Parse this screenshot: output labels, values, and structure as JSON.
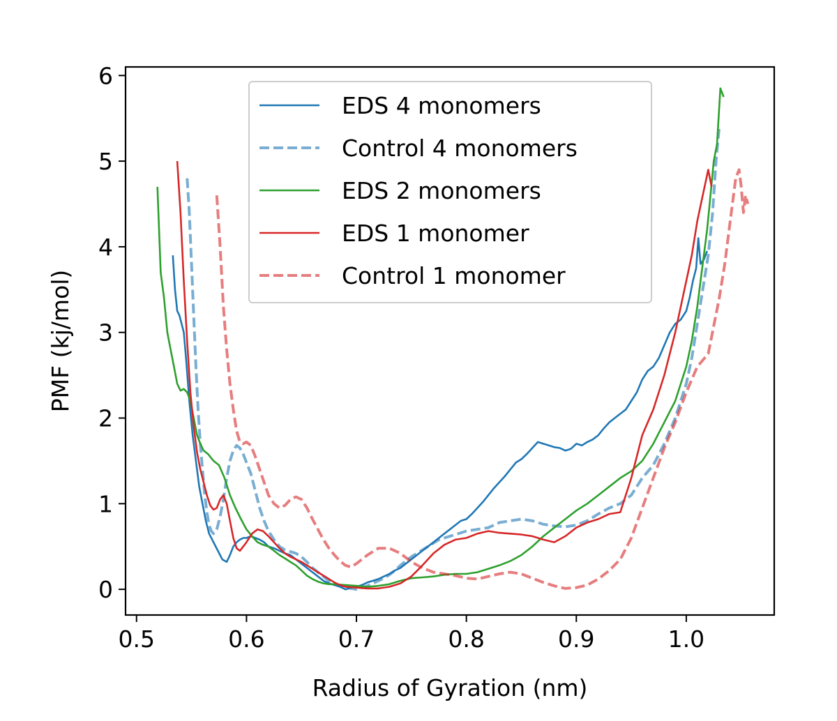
{
  "chart_data": {
    "type": "line",
    "title": "",
    "xlabel": "Radius of Gyration (nm)",
    "ylabel": "PMF (kj/mol)",
    "xlim": [
      0.49,
      1.08
    ],
    "ylim": [
      -0.3,
      6.1
    ],
    "xticks": [
      0.5,
      0.6,
      0.7,
      0.8,
      0.9,
      1.0
    ],
    "xtick_labels": [
      "0.5",
      "0.6",
      "0.7",
      "0.8",
      "0.9",
      "1.0"
    ],
    "yticks": [
      0,
      1,
      2,
      3,
      4,
      5,
      6
    ],
    "ytick_labels": [
      "0",
      "1",
      "2",
      "3",
      "4",
      "5",
      "6"
    ],
    "grid": false,
    "legend_position": "top-center",
    "series": [
      {
        "name": "EDS 4 monomers",
        "color": "#1f77b4",
        "style": "solid",
        "opacity": 1,
        "x": [
          0.533,
          0.535,
          0.537,
          0.539,
          0.541,
          0.543,
          0.545,
          0.548,
          0.551,
          0.554,
          0.557,
          0.56,
          0.563,
          0.566,
          0.57,
          0.574,
          0.578,
          0.582,
          0.585,
          0.588,
          0.591,
          0.594,
          0.597,
          0.6,
          0.604,
          0.608,
          0.612,
          0.616,
          0.62,
          0.625,
          0.63,
          0.635,
          0.64,
          0.645,
          0.65,
          0.655,
          0.66,
          0.665,
          0.67,
          0.675,
          0.68,
          0.685,
          0.69,
          0.695,
          0.7,
          0.705,
          0.71,
          0.715,
          0.72,
          0.725,
          0.73,
          0.735,
          0.74,
          0.745,
          0.75,
          0.755,
          0.76,
          0.765,
          0.77,
          0.775,
          0.78,
          0.785,
          0.79,
          0.795,
          0.8,
          0.805,
          0.81,
          0.815,
          0.82,
          0.825,
          0.83,
          0.835,
          0.84,
          0.845,
          0.85,
          0.855,
          0.86,
          0.865,
          0.87,
          0.875,
          0.88,
          0.885,
          0.89,
          0.895,
          0.9,
          0.905,
          0.91,
          0.915,
          0.92,
          0.925,
          0.93,
          0.935,
          0.94,
          0.945,
          0.95,
          0.955,
          0.96,
          0.965,
          0.97,
          0.975,
          0.98,
          0.985,
          0.99,
          0.995,
          1.0,
          1.003,
          1.006,
          1.009,
          1.011,
          1.013,
          1.016,
          1.019
        ],
        "y": [
          3.9,
          3.5,
          3.25,
          3.2,
          3.1,
          3.0,
          2.7,
          2.2,
          1.8,
          1.5,
          1.2,
          1.0,
          0.8,
          0.65,
          0.55,
          0.45,
          0.35,
          0.32,
          0.4,
          0.5,
          0.55,
          0.58,
          0.6,
          0.6,
          0.62,
          0.6,
          0.58,
          0.55,
          0.5,
          0.48,
          0.45,
          0.42,
          0.4,
          0.35,
          0.3,
          0.25,
          0.2,
          0.15,
          0.1,
          0.07,
          0.05,
          0.03,
          0.0,
          0.02,
          0.03,
          0.05,
          0.08,
          0.1,
          0.12,
          0.15,
          0.18,
          0.22,
          0.25,
          0.3,
          0.35,
          0.4,
          0.45,
          0.5,
          0.55,
          0.6,
          0.65,
          0.7,
          0.75,
          0.8,
          0.82,
          0.88,
          0.95,
          1.02,
          1.1,
          1.18,
          1.25,
          1.32,
          1.4,
          1.48,
          1.52,
          1.58,
          1.65,
          1.72,
          1.7,
          1.68,
          1.66,
          1.65,
          1.62,
          1.64,
          1.7,
          1.68,
          1.72,
          1.75,
          1.8,
          1.88,
          1.95,
          2.0,
          2.05,
          2.1,
          2.2,
          2.3,
          2.45,
          2.55,
          2.6,
          2.7,
          2.85,
          3.0,
          3.1,
          3.15,
          3.25,
          3.4,
          3.6,
          3.75,
          4.1,
          3.8,
          3.85,
          3.95
        ]
      },
      {
        "name": "Control 4 monomers",
        "color": "#1f77b4",
        "style": "dashed",
        "opacity": 0.6,
        "x": [
          0.546,
          0.548,
          0.55,
          0.552,
          0.554,
          0.556,
          0.558,
          0.56,
          0.562,
          0.564,
          0.566,
          0.568,
          0.57,
          0.573,
          0.576,
          0.579,
          0.582,
          0.585,
          0.588,
          0.591,
          0.594,
          0.597,
          0.6,
          0.604,
          0.608,
          0.612,
          0.616,
          0.62,
          0.625,
          0.63,
          0.635,
          0.64,
          0.645,
          0.65,
          0.655,
          0.66,
          0.665,
          0.67,
          0.675,
          0.68,
          0.685,
          0.69,
          0.695,
          0.7,
          0.705,
          0.71,
          0.715,
          0.72,
          0.725,
          0.73,
          0.735,
          0.74,
          0.745,
          0.75,
          0.755,
          0.76,
          0.765,
          0.77,
          0.775,
          0.78,
          0.785,
          0.79,
          0.795,
          0.8,
          0.81,
          0.82,
          0.83,
          0.84,
          0.85,
          0.86,
          0.87,
          0.88,
          0.89,
          0.9,
          0.91,
          0.92,
          0.93,
          0.94,
          0.95,
          0.96,
          0.97,
          0.98,
          0.99,
          1.0,
          1.005,
          1.01,
          1.015,
          1.02,
          1.024,
          1.027,
          1.03
        ],
        "y": [
          4.8,
          4.4,
          3.8,
          3.2,
          2.6,
          2.1,
          1.7,
          1.4,
          1.1,
          0.9,
          0.75,
          0.68,
          0.65,
          0.7,
          0.85,
          1.05,
          1.3,
          1.5,
          1.62,
          1.68,
          1.65,
          1.58,
          1.48,
          1.35,
          1.15,
          0.95,
          0.8,
          0.68,
          0.58,
          0.5,
          0.46,
          0.44,
          0.42,
          0.38,
          0.32,
          0.25,
          0.2,
          0.15,
          0.1,
          0.07,
          0.04,
          0.02,
          0.01,
          0.0,
          0.02,
          0.04,
          0.07,
          0.1,
          0.13,
          0.17,
          0.22,
          0.28,
          0.33,
          0.38,
          0.42,
          0.46,
          0.5,
          0.54,
          0.58,
          0.6,
          0.62,
          0.64,
          0.66,
          0.68,
          0.7,
          0.72,
          0.78,
          0.8,
          0.82,
          0.8,
          0.76,
          0.74,
          0.73,
          0.75,
          0.8,
          0.88,
          0.95,
          1.0,
          1.1,
          1.3,
          1.45,
          1.7,
          2.0,
          2.4,
          2.7,
          3.1,
          3.5,
          3.9,
          4.4,
          5.0,
          5.4
        ]
      },
      {
        "name": "EDS 2 monomers",
        "color": "#2ca02c",
        "style": "solid",
        "opacity": 1,
        "x": [
          0.519,
          0.522,
          0.525,
          0.528,
          0.531,
          0.534,
          0.537,
          0.54,
          0.543,
          0.546,
          0.549,
          0.552,
          0.555,
          0.558,
          0.561,
          0.565,
          0.57,
          0.575,
          0.58,
          0.585,
          0.59,
          0.595,
          0.6,
          0.605,
          0.61,
          0.615,
          0.62,
          0.625,
          0.63,
          0.635,
          0.64,
          0.645,
          0.65,
          0.655,
          0.66,
          0.665,
          0.67,
          0.675,
          0.68,
          0.69,
          0.7,
          0.71,
          0.72,
          0.73,
          0.74,
          0.75,
          0.76,
          0.77,
          0.78,
          0.79,
          0.8,
          0.81,
          0.82,
          0.83,
          0.84,
          0.85,
          0.86,
          0.87,
          0.88,
          0.89,
          0.9,
          0.91,
          0.92,
          0.93,
          0.94,
          0.95,
          0.96,
          0.97,
          0.98,
          0.99,
          1.0,
          1.005,
          1.01,
          1.015,
          1.019,
          1.022,
          1.025,
          1.028,
          1.031,
          1.034
        ],
        "y": [
          4.7,
          3.7,
          3.4,
          3.0,
          2.8,
          2.6,
          2.4,
          2.32,
          2.34,
          2.3,
          2.2,
          2.0,
          1.8,
          1.7,
          1.62,
          1.58,
          1.5,
          1.45,
          1.3,
          1.1,
          0.95,
          0.82,
          0.7,
          0.62,
          0.55,
          0.52,
          0.5,
          0.45,
          0.4,
          0.36,
          0.32,
          0.28,
          0.22,
          0.16,
          0.12,
          0.09,
          0.07,
          0.06,
          0.06,
          0.05,
          0.04,
          0.03,
          0.04,
          0.06,
          0.1,
          0.13,
          0.14,
          0.15,
          0.17,
          0.18,
          0.18,
          0.2,
          0.24,
          0.28,
          0.33,
          0.4,
          0.5,
          0.62,
          0.72,
          0.82,
          0.92,
          1.0,
          1.1,
          1.2,
          1.3,
          1.38,
          1.5,
          1.7,
          1.95,
          2.2,
          2.6,
          2.9,
          3.3,
          3.8,
          4.2,
          4.6,
          5.0,
          5.2,
          5.85,
          5.75
        ]
      },
      {
        "name": "EDS 1 monomer",
        "color": "#d62728",
        "style": "solid",
        "opacity": 1,
        "x": [
          0.537,
          0.54,
          0.543,
          0.546,
          0.549,
          0.552,
          0.555,
          0.558,
          0.561,
          0.564,
          0.567,
          0.57,
          0.573,
          0.576,
          0.579,
          0.582,
          0.585,
          0.588,
          0.591,
          0.594,
          0.597,
          0.6,
          0.605,
          0.61,
          0.615,
          0.62,
          0.625,
          0.63,
          0.635,
          0.64,
          0.645,
          0.65,
          0.655,
          0.66,
          0.665,
          0.67,
          0.675,
          0.68,
          0.685,
          0.69,
          0.7,
          0.71,
          0.72,
          0.73,
          0.74,
          0.75,
          0.76,
          0.77,
          0.78,
          0.79,
          0.8,
          0.81,
          0.82,
          0.83,
          0.84,
          0.85,
          0.86,
          0.87,
          0.88,
          0.89,
          0.9,
          0.91,
          0.92,
          0.93,
          0.94,
          0.95,
          0.96,
          0.97,
          0.98,
          0.99,
          1.0,
          1.005,
          1.01,
          1.015,
          1.02,
          1.023
        ],
        "y": [
          5.0,
          4.4,
          3.6,
          2.9,
          2.3,
          1.9,
          1.6,
          1.4,
          1.25,
          1.1,
          0.98,
          0.93,
          0.95,
          1.05,
          1.1,
          1.0,
          0.8,
          0.6,
          0.48,
          0.45,
          0.5,
          0.55,
          0.65,
          0.7,
          0.68,
          0.62,
          0.55,
          0.48,
          0.42,
          0.38,
          0.35,
          0.32,
          0.28,
          0.24,
          0.2,
          0.16,
          0.12,
          0.08,
          0.05,
          0.03,
          0.02,
          0.01,
          0.01,
          0.03,
          0.07,
          0.15,
          0.28,
          0.42,
          0.52,
          0.58,
          0.6,
          0.65,
          0.68,
          0.66,
          0.65,
          0.64,
          0.62,
          0.58,
          0.55,
          0.62,
          0.72,
          0.78,
          0.82,
          0.88,
          0.9,
          1.3,
          1.8,
          2.1,
          2.5,
          3.0,
          3.6,
          3.9,
          4.3,
          4.6,
          4.9,
          4.7
        ]
      },
      {
        "name": "Control 1 monomer",
        "color": "#d62728",
        "style": "dashed",
        "opacity": 0.6,
        "x": [
          0.573,
          0.576,
          0.579,
          0.582,
          0.585,
          0.588,
          0.591,
          0.594,
          0.597,
          0.6,
          0.604,
          0.608,
          0.612,
          0.616,
          0.62,
          0.625,
          0.63,
          0.635,
          0.64,
          0.645,
          0.65,
          0.655,
          0.66,
          0.665,
          0.67,
          0.675,
          0.68,
          0.685,
          0.69,
          0.695,
          0.7,
          0.71,
          0.72,
          0.73,
          0.74,
          0.75,
          0.76,
          0.77,
          0.78,
          0.79,
          0.8,
          0.81,
          0.82,
          0.83,
          0.84,
          0.85,
          0.86,
          0.87,
          0.88,
          0.89,
          0.9,
          0.91,
          0.92,
          0.93,
          0.94,
          0.95,
          0.96,
          0.97,
          0.98,
          0.99,
          1.0,
          1.01,
          1.02,
          1.03,
          1.035,
          1.04,
          1.045,
          1.048,
          1.05,
          1.052,
          1.054,
          1.056
        ],
        "y": [
          4.6,
          4.0,
          3.3,
          2.8,
          2.4,
          2.1,
          1.85,
          1.72,
          1.7,
          1.72,
          1.68,
          1.55,
          1.4,
          1.25,
          1.1,
          1.0,
          0.95,
          0.98,
          1.05,
          1.08,
          1.05,
          0.95,
          0.82,
          0.7,
          0.58,
          0.48,
          0.4,
          0.33,
          0.28,
          0.26,
          0.3,
          0.4,
          0.48,
          0.48,
          0.42,
          0.32,
          0.25,
          0.2,
          0.18,
          0.16,
          0.13,
          0.12,
          0.15,
          0.18,
          0.2,
          0.18,
          0.13,
          0.08,
          0.04,
          0.01,
          0.02,
          0.05,
          0.12,
          0.22,
          0.35,
          0.6,
          0.95,
          1.3,
          1.65,
          1.95,
          2.3,
          2.6,
          2.75,
          3.4,
          3.8,
          4.3,
          4.8,
          4.9,
          4.7,
          4.4,
          4.6,
          4.5
        ]
      }
    ]
  }
}
